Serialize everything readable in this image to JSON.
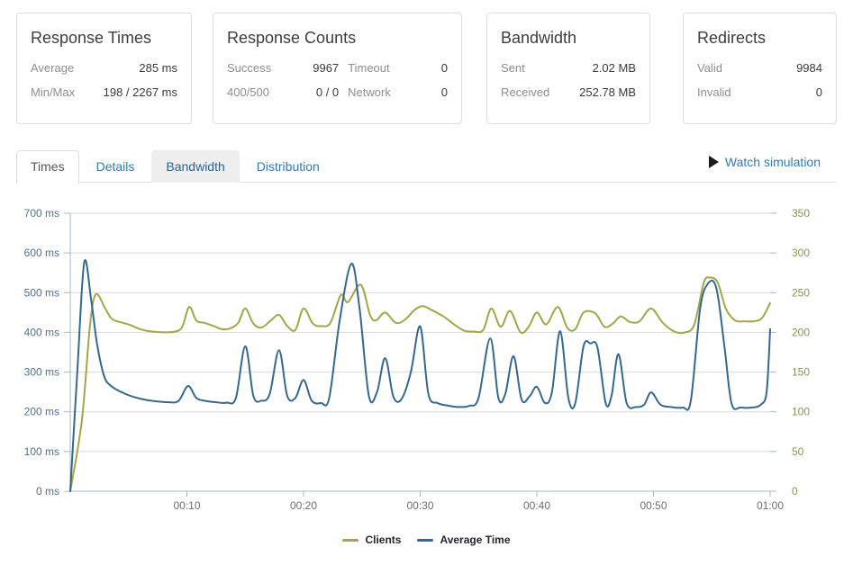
{
  "cards": [
    {
      "title": "Response Times",
      "rows": [
        [
          {
            "label": "Average",
            "value": "285 ms"
          }
        ],
        [
          {
            "label": "Min/Max",
            "value": "198 / 2267 ms"
          }
        ]
      ]
    },
    {
      "title": "Response Counts",
      "rows": [
        [
          {
            "label": "Success",
            "value": "9967"
          },
          {
            "label": "Timeout",
            "value": "0"
          }
        ],
        [
          {
            "label": "400/500",
            "value": "0 / 0"
          },
          {
            "label": "Network",
            "value": "0"
          }
        ]
      ]
    },
    {
      "title": "Bandwidth",
      "rows": [
        [
          {
            "label": "Sent",
            "value": "2.02 MB"
          }
        ],
        [
          {
            "label": "Received",
            "value": "252.78 MB"
          }
        ]
      ]
    },
    {
      "title": "Redirects",
      "rows": [
        [
          {
            "label": "Valid",
            "value": "9984"
          }
        ],
        [
          {
            "label": "Invalid",
            "value": "0"
          }
        ]
      ]
    }
  ],
  "tabs": [
    {
      "label": "Times",
      "state": "active"
    },
    {
      "label": "Details",
      "state": "normal"
    },
    {
      "label": "Bandwidth",
      "state": "hover"
    },
    {
      "label": "Distribution",
      "state": "normal"
    }
  ],
  "watch": {
    "icon": "play-icon",
    "label": "Watch simulation"
  },
  "chart_data": {
    "type": "line",
    "x_axis": {
      "min": 0,
      "max": 60,
      "unit": "minutes",
      "ticks": [
        {
          "t": 10,
          "label": "00:10"
        },
        {
          "t": 20,
          "label": "00:20"
        },
        {
          "t": 30,
          "label": "00:30"
        },
        {
          "t": 40,
          "label": "00:40"
        },
        {
          "t": 50,
          "label": "00:50"
        },
        {
          "t": 60,
          "label": "01:00"
        }
      ]
    },
    "left_axis": {
      "min": 0,
      "max": 700,
      "label_color": "#517189",
      "ticks": [
        {
          "v": 0,
          "label": "0 ms"
        },
        {
          "v": 100,
          "label": "100 ms"
        },
        {
          "v": 200,
          "label": "200 ms"
        },
        {
          "v": 300,
          "label": "300 ms"
        },
        {
          "v": 400,
          "label": "400 ms"
        },
        {
          "v": 500,
          "label": "500 ms"
        },
        {
          "v": 600,
          "label": "600 ms"
        },
        {
          "v": 700,
          "label": "700 ms"
        }
      ]
    },
    "right_axis": {
      "min": 0,
      "max": 350,
      "label_color": "#8e9254",
      "ticks": [
        {
          "v": 0,
          "label": "0"
        },
        {
          "v": 50,
          "label": "50"
        },
        {
          "v": 100,
          "label": "100"
        },
        {
          "v": 150,
          "label": "150"
        },
        {
          "v": 200,
          "label": "200"
        },
        {
          "v": 250,
          "label": "250"
        },
        {
          "v": 300,
          "label": "300"
        },
        {
          "v": 350,
          "label": "350"
        }
      ]
    },
    "grid": true,
    "legend_position": "bottom",
    "series": [
      {
        "name": "Clients",
        "axis": "right",
        "color": "#a2a648",
        "points": [
          [
            0,
            0
          ],
          [
            1,
            90
          ],
          [
            1.7,
            210
          ],
          [
            2.2,
            248
          ],
          [
            3,
            230
          ],
          [
            3.5,
            218
          ],
          [
            4,
            214
          ],
          [
            5,
            210
          ],
          [
            6,
            204
          ],
          [
            7,
            201
          ],
          [
            8,
            200
          ],
          [
            9,
            201
          ],
          [
            9.6,
            207
          ],
          [
            10.2,
            232
          ],
          [
            10.8,
            215
          ],
          [
            11.5,
            212
          ],
          [
            12.3,
            208
          ],
          [
            13,
            204
          ],
          [
            13.7,
            205
          ],
          [
            14.4,
            212
          ],
          [
            15,
            230
          ],
          [
            15.7,
            211
          ],
          [
            16.4,
            206
          ],
          [
            17.2,
            215
          ],
          [
            17.9,
            222
          ],
          [
            18.6,
            208
          ],
          [
            19.3,
            203
          ],
          [
            20,
            230
          ],
          [
            20.8,
            211
          ],
          [
            21.5,
            208
          ],
          [
            22.3,
            212
          ],
          [
            23.2,
            247
          ],
          [
            23.8,
            238
          ],
          [
            24.9,
            260
          ],
          [
            25.7,
            222
          ],
          [
            26.2,
            215
          ],
          [
            27,
            225
          ],
          [
            27.9,
            212
          ],
          [
            28.7,
            216
          ],
          [
            29.5,
            228
          ],
          [
            30.2,
            233
          ],
          [
            31,
            228
          ],
          [
            32,
            220
          ],
          [
            33,
            209
          ],
          [
            33.8,
            202
          ],
          [
            34.6,
            201
          ],
          [
            35.4,
            203
          ],
          [
            36.1,
            230
          ],
          [
            36.9,
            207
          ],
          [
            37.7,
            227
          ],
          [
            38.6,
            200
          ],
          [
            39.3,
            207
          ],
          [
            40,
            225
          ],
          [
            40.8,
            210
          ],
          [
            41.8,
            232
          ],
          [
            42.6,
            206
          ],
          [
            43.3,
            204
          ],
          [
            44,
            225
          ],
          [
            45,
            224
          ],
          [
            45.8,
            207
          ],
          [
            46.5,
            211
          ],
          [
            47.2,
            220
          ],
          [
            48,
            213
          ],
          [
            48.8,
            214
          ],
          [
            49.8,
            230
          ],
          [
            50.8,
            212
          ],
          [
            51.8,
            201
          ],
          [
            52.7,
            200
          ],
          [
            53.5,
            210
          ],
          [
            54.3,
            262
          ],
          [
            54.8,
            269
          ],
          [
            55.5,
            263
          ],
          [
            56.2,
            230
          ],
          [
            57,
            215
          ],
          [
            57.8,
            214
          ],
          [
            58.6,
            214
          ],
          [
            59.3,
            218
          ],
          [
            60,
            237
          ]
        ]
      },
      {
        "name": "Average Time",
        "axis": "left",
        "color": "#36688e",
        "points": [
          [
            0,
            0
          ],
          [
            0.6,
            300
          ],
          [
            1.2,
            576
          ],
          [
            1.8,
            480
          ],
          [
            2.3,
            370
          ],
          [
            2.9,
            290
          ],
          [
            3.5,
            265
          ],
          [
            4.5,
            248
          ],
          [
            5.5,
            237
          ],
          [
            6.5,
            230
          ],
          [
            7.5,
            226
          ],
          [
            8.5,
            224
          ],
          [
            9.3,
            228
          ],
          [
            10.1,
            265
          ],
          [
            10.8,
            235
          ],
          [
            11.5,
            228
          ],
          [
            12.5,
            224
          ],
          [
            13.4,
            223
          ],
          [
            14.2,
            235
          ],
          [
            15,
            365
          ],
          [
            15.7,
            240
          ],
          [
            16.4,
            228
          ],
          [
            17.1,
            245
          ],
          [
            17.9,
            355
          ],
          [
            18.6,
            240
          ],
          [
            19.3,
            235
          ],
          [
            20,
            280
          ],
          [
            20.7,
            228
          ],
          [
            21.5,
            222
          ],
          [
            22.2,
            235
          ],
          [
            23.1,
            430
          ],
          [
            24.1,
            573
          ],
          [
            24.8,
            460
          ],
          [
            25.6,
            240
          ],
          [
            26.3,
            250
          ],
          [
            27,
            335
          ],
          [
            27.7,
            238
          ],
          [
            28.4,
            232
          ],
          [
            29.2,
            300
          ],
          [
            30,
            415
          ],
          [
            30.7,
            245
          ],
          [
            31.5,
            222
          ],
          [
            32.5,
            215
          ],
          [
            33.3,
            212
          ],
          [
            34.2,
            215
          ],
          [
            35,
            235
          ],
          [
            36,
            385
          ],
          [
            36.7,
            235
          ],
          [
            37.3,
            245
          ],
          [
            38,
            340
          ],
          [
            38.7,
            230
          ],
          [
            39.4,
            240
          ],
          [
            40,
            263
          ],
          [
            40.7,
            222
          ],
          [
            41.3,
            250
          ],
          [
            42,
            403
          ],
          [
            42.7,
            235
          ],
          [
            43.3,
            222
          ],
          [
            44,
            365
          ],
          [
            44.6,
            372
          ],
          [
            45.2,
            362
          ],
          [
            45.9,
            222
          ],
          [
            46.4,
            240
          ],
          [
            47,
            345
          ],
          [
            47.7,
            222
          ],
          [
            48.5,
            212
          ],
          [
            49.2,
            218
          ],
          [
            49.8,
            249
          ],
          [
            50.6,
            218
          ],
          [
            51.5,
            212
          ],
          [
            52.5,
            211
          ],
          [
            53.2,
            228
          ],
          [
            54,
            460
          ],
          [
            54.7,
            524
          ],
          [
            55.4,
            510
          ],
          [
            56.1,
            360
          ],
          [
            56.7,
            220
          ],
          [
            57.5,
            211
          ],
          [
            58.5,
            211
          ],
          [
            59.2,
            218
          ],
          [
            59.7,
            250
          ],
          [
            60,
            408
          ]
        ]
      }
    ]
  }
}
